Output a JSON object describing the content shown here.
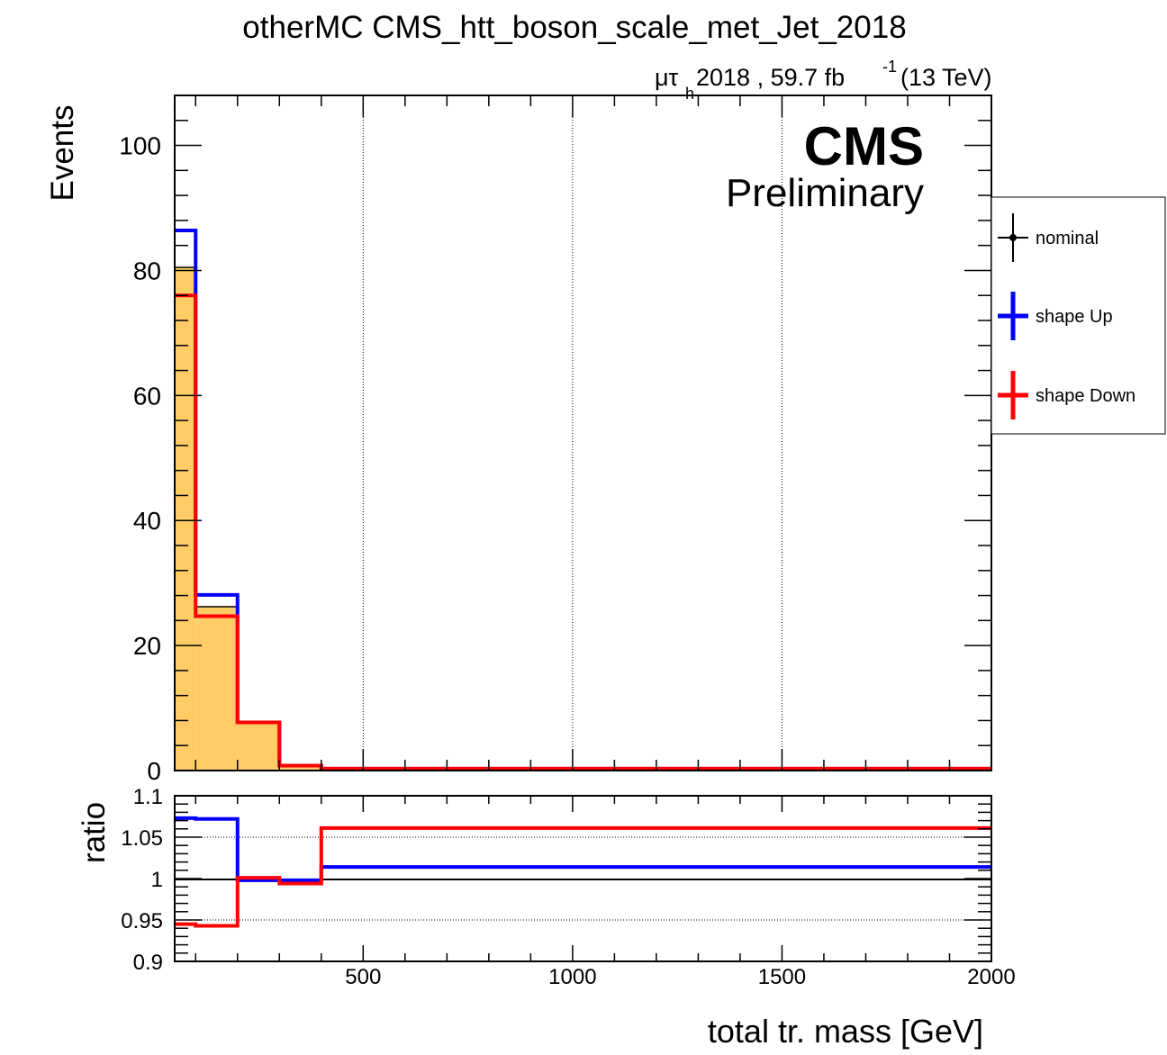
{
  "title": "otherMC CMS_htt_boson_scale_met_Jet_2018",
  "lumi": {
    "channel_main": "μτ",
    "channel_sub": "h",
    "text": " 2018 , 59.7 fb",
    "sup": "-1",
    "energy": " (13 TeV)"
  },
  "cms": {
    "label": "CMS",
    "sublabel": "Preliminary"
  },
  "legend": [
    {
      "label": "nominal",
      "color": "#000000"
    },
    {
      "label": "shape Up",
      "color": "#0000ff"
    },
    {
      "label": "shape Down",
      "color": "#ff0000"
    }
  ],
  "chart_data": [
    {
      "type": "bar",
      "panel": "main",
      "ylabel": "Events",
      "xlim": [
        50,
        2000
      ],
      "ylim": [
        0,
        108
      ],
      "y_ticks": [
        0,
        20,
        40,
        60,
        80,
        100
      ],
      "grid_x": [
        500,
        1000,
        1500
      ],
      "fill_color": "#ffcc66",
      "bin_edges": [
        50,
        100,
        200,
        300,
        400,
        2000
      ],
      "series": [
        {
          "name": "nominal",
          "color": "#000000",
          "values": [
            80.5,
            26.2,
            7.7,
            0.8,
            0.3
          ]
        },
        {
          "name": "shape Up",
          "color": "#0000ff",
          "values": [
            86.4,
            28.1,
            7.7,
            0.8,
            0.3
          ]
        },
        {
          "name": "shape Down",
          "color": "#ff0000",
          "values": [
            76.0,
            24.7,
            7.7,
            0.8,
            0.3
          ]
        }
      ]
    },
    {
      "type": "line",
      "panel": "ratio",
      "ylabel": "ratio",
      "xlabel": "total tr. mass [GeV]",
      "xlim": [
        50,
        2000
      ],
      "ylim": [
        0.9,
        1.1
      ],
      "y_tick_labels": [
        "0.9",
        "0.95",
        "1",
        "1.05",
        "1.1"
      ],
      "y_ticks": [
        0.9,
        0.95,
        1.0,
        1.05,
        1.1
      ],
      "x_tick_labels": [
        "500",
        "1000",
        "1500",
        "2000"
      ],
      "x_ticks": [
        500,
        1000,
        1500,
        2000
      ],
      "grid_y": [
        0.95,
        1.05
      ],
      "bin_edges": [
        50,
        100,
        200,
        300,
        400,
        2000
      ],
      "series": [
        {
          "name": "shape Up",
          "color": "#0000ff",
          "values": [
            1.073,
            1.072,
            0.998,
            0.998,
            1.014
          ]
        },
        {
          "name": "shape Down",
          "color": "#ff0000",
          "values": [
            0.945,
            0.943,
            1.001,
            0.994,
            1.061
          ]
        }
      ]
    }
  ]
}
